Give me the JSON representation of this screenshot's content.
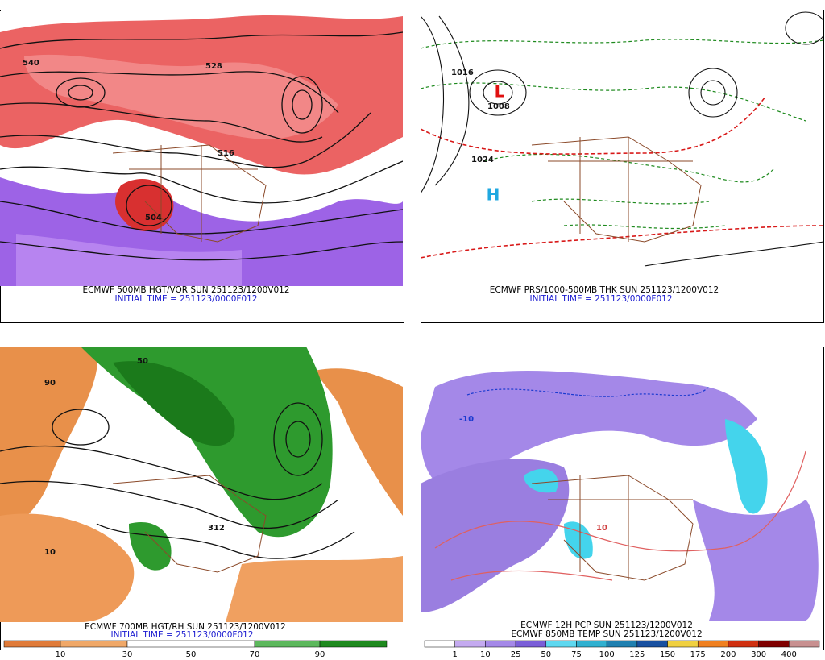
{
  "panels": [
    {
      "caption": "ECMWF 500MB HGT/VOR SUN 251123/1200V012",
      "initial_time": "INITIAL TIME = 251123/0000F012",
      "labels": [
        "540",
        "528",
        "516",
        "504"
      ]
    },
    {
      "caption": "ECMWF PRS/1000-500MB THK SUN 251123/1200V012",
      "initial_time": "INITIAL TIME = 251123/0000F012",
      "labels": [
        "1016",
        "1008",
        "1024",
        "L",
        "H"
      ]
    },
    {
      "caption": "ECMWF 700MB HGT/RH SUN 251123/1200V012",
      "initial_time": "INITIAL TIME = 251123/0000F012",
      "labels": [
        "50",
        "90",
        "10",
        "312"
      ],
      "colorbar": [
        "10",
        "30",
        "50",
        "70",
        "90"
      ]
    },
    {
      "caption": "ECMWF 12H PCP SUN 251123/1200V012",
      "caption2": "ECMWF 850MB TEMP SUN 251123/1200V012",
      "labels": [
        "10",
        "-10"
      ],
      "colorbar": [
        "1",
        "10",
        "25",
        "50",
        "75",
        "100",
        "125",
        "150",
        "175",
        "200",
        "300",
        "400"
      ]
    }
  ]
}
